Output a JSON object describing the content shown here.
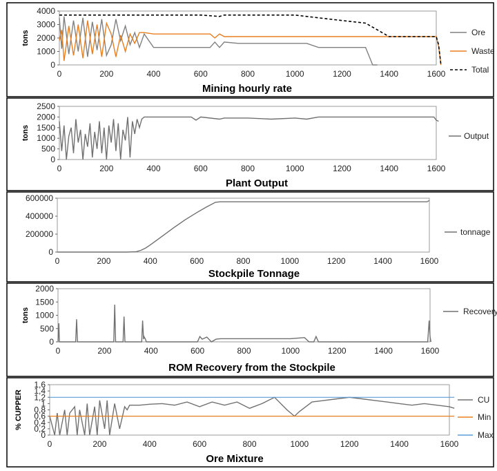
{
  "colors": {
    "ore": "#808080",
    "waste": "#e87e1e",
    "total": "#000000",
    "gray_line": "#707070",
    "min": "#e87e1e",
    "max": "#5b9bd5"
  },
  "chart_data": [
    {
      "type": "line",
      "title": "Mining hourly rate",
      "ylabel": "tons",
      "xlim": [
        0,
        1600
      ],
      "ylim": [
        0,
        4000
      ],
      "xticks": [
        "0",
        "200",
        "400",
        "600",
        "800",
        "1000",
        "1200",
        "1400",
        "1600"
      ],
      "yticks": [
        "0",
        "1000",
        "2000",
        "3000",
        "4000"
      ],
      "series": [
        {
          "name": "Ore",
          "x": [
            0,
            10,
            20,
            40,
            60,
            80,
            100,
            120,
            140,
            160,
            180,
            200,
            220,
            240,
            260,
            280,
            300,
            320,
            340,
            360,
            400,
            450,
            500,
            550,
            600,
            640,
            660,
            680,
            700,
            760,
            800,
            900,
            1000,
            1050,
            1100,
            1150,
            1200,
            1250,
            1300,
            1330,
            1340,
            1350
          ],
          "y": [
            3500,
            1200,
            3600,
            800,
            3300,
            1000,
            3500,
            600,
            3200,
            1100,
            3400,
            700,
            1500,
            3400,
            1800,
            2900,
            1500,
            2400,
            1300,
            2300,
            1300,
            1300,
            1300,
            1300,
            1300,
            1300,
            1700,
            1300,
            1700,
            1600,
            1600,
            1600,
            1600,
            1600,
            1300,
            1300,
            1300,
            1300,
            1300,
            0,
            0,
            0
          ]
        },
        {
          "name": "Waste",
          "x": [
            0,
            10,
            20,
            40,
            60,
            80,
            100,
            120,
            140,
            160,
            180,
            200,
            220,
            240,
            260,
            280,
            300,
            320,
            340,
            360,
            400,
            450,
            500,
            550,
            600,
            640,
            660,
            680,
            700,
            760,
            800,
            900,
            1000,
            1050,
            1100,
            1150,
            1200,
            1300,
            1340,
            1400,
            1500,
            1600,
            1610,
            1620
          ],
          "y": [
            1800,
            2600,
            300,
            2900,
            700,
            3000,
            500,
            3300,
            800,
            3000,
            600,
            3100,
            2300,
            600,
            2200,
            1000,
            2300,
            1600,
            2400,
            2400,
            2300,
            2300,
            2300,
            2300,
            2300,
            2300,
            2000,
            2300,
            2100,
            2100,
            2100,
            2100,
            2100,
            2100,
            2100,
            2100,
            2100,
            2100,
            2100,
            2100,
            2100,
            2100,
            1400,
            0
          ]
        },
        {
          "name": "Total",
          "x": [
            0,
            200,
            300,
            400,
            600,
            680,
            700,
            1000,
            1100,
            1200,
            1300,
            1340,
            1370,
            1400,
            1500,
            1600,
            1610,
            1620
          ],
          "y": [
            3700,
            3700,
            3700,
            3700,
            3700,
            3600,
            3700,
            3700,
            3500,
            3300,
            3100,
            2700,
            2400,
            2100,
            2100,
            2100,
            1500,
            0
          ]
        }
      ],
      "legend_position": "right"
    },
    {
      "type": "line",
      "title": "Plant Output",
      "ylabel": "tons",
      "xlim": [
        0,
        1600
      ],
      "ylim": [
        0,
        2500
      ],
      "xticks": [
        "0",
        "200",
        "400",
        "600",
        "800",
        "1000",
        "1200",
        "1400",
        "1600"
      ],
      "yticks": [
        "0",
        "500",
        "1000",
        "1500",
        "2000",
        "2500"
      ],
      "series": [
        {
          "name": "Output",
          "x": [
            0,
            10,
            20,
            30,
            40,
            50,
            60,
            70,
            80,
            90,
            100,
            110,
            120,
            130,
            140,
            150,
            160,
            170,
            180,
            190,
            200,
            210,
            220,
            230,
            240,
            250,
            260,
            270,
            280,
            290,
            300,
            310,
            320,
            330,
            340,
            350,
            360,
            400,
            500,
            560,
            580,
            600,
            680,
            700,
            800,
            900,
            1000,
            1050,
            1100,
            1200,
            1300,
            1400,
            1500,
            1590,
            1600,
            1610
          ],
          "y": [
            1800,
            400,
            1600,
            0,
            1100,
            1500,
            300,
            1900,
            800,
            1400,
            0,
            1200,
            600,
            1700,
            100,
            1300,
            500,
            1800,
            300,
            1500,
            0,
            1600,
            800,
            1900,
            400,
            1700,
            0,
            1400,
            900,
            2000,
            100,
            1800,
            1200,
            1900,
            1500,
            1900,
            2000,
            2000,
            2000,
            2000,
            1850,
            2000,
            1900,
            1950,
            1950,
            1900,
            1950,
            1900,
            2000,
            2000,
            2000,
            2000,
            2000,
            2000,
            1850,
            1800
          ]
        }
      ],
      "legend_position": "right"
    },
    {
      "type": "line",
      "title": "Stockpile Tonnage",
      "ylabel": "",
      "xlim": [
        0,
        1600
      ],
      "ylim": [
        0,
        600000
      ],
      "xticks": [
        "0",
        "200",
        "400",
        "600",
        "800",
        "1000",
        "1200",
        "1400",
        "1600"
      ],
      "yticks": [
        "0",
        "200000",
        "400000",
        "600000"
      ],
      "series": [
        {
          "name": "tonnage",
          "x": [
            0,
            200,
            300,
            340,
            360,
            380,
            400,
            450,
            500,
            550,
            600,
            640,
            680,
            700,
            800,
            1000,
            1100,
            1200,
            1400,
            1590,
            1600
          ],
          "y": [
            0,
            0,
            0,
            5000,
            20000,
            45000,
            80000,
            175000,
            270000,
            360000,
            440000,
            500000,
            555000,
            560000,
            560000,
            560000,
            560000,
            560000,
            560000,
            560000,
            575000
          ]
        }
      ],
      "legend_position": "right"
    },
    {
      "type": "line",
      "title": "ROM Recovery from the Stockpile",
      "ylabel": "tons",
      "xlim": [
        0,
        1600
      ],
      "ylim": [
        0,
        2000
      ],
      "xticks": [
        "0",
        "200",
        "400",
        "600",
        "800",
        "1000",
        "1200",
        "1400",
        "1600"
      ],
      "yticks": [
        "0",
        "500",
        "1000",
        "1500",
        "2000"
      ],
      "series": [
        {
          "name": "Recovery",
          "x": [
            0,
            4,
            6,
            10,
            76,
            80,
            84,
            240,
            244,
            248,
            280,
            284,
            288,
            360,
            364,
            368,
            370,
            376,
            380,
            600,
            610,
            620,
            640,
            660,
            680,
            700,
            1000,
            1060,
            1080,
            1100,
            1110,
            1120,
            1590,
            1596,
            1600,
            1604
          ],
          "y": [
            0,
            700,
            0,
            0,
            0,
            850,
            0,
            0,
            1400,
            0,
            0,
            950,
            0,
            0,
            800,
            100,
            200,
            100,
            0,
            0,
            200,
            100,
            180,
            0,
            100,
            120,
            120,
            160,
            0,
            0,
            200,
            0,
            0,
            800,
            200,
            0
          ]
        }
      ],
      "legend_position": "right"
    },
    {
      "type": "line",
      "title": "Ore Mixture",
      "ylabel": "% CUPPER",
      "xlim": [
        0,
        1600
      ],
      "ylim": [
        0,
        1.6
      ],
      "xticks": [
        "0",
        "200",
        "400",
        "600",
        "800",
        "1000",
        "1200",
        "1400",
        "1600"
      ],
      "yticks": [
        "0",
        "0,2",
        "0,4",
        "0,6",
        "0,8",
        "1",
        "1,2",
        "1,4",
        "1,6"
      ],
      "series": [
        {
          "name": "CU",
          "x": [
            0,
            20,
            30,
            40,
            60,
            70,
            80,
            100,
            110,
            120,
            140,
            150,
            160,
            180,
            190,
            200,
            220,
            230,
            240,
            260,
            280,
            300,
            310,
            320,
            360,
            400,
            450,
            500,
            550,
            600,
            650,
            700,
            750,
            800,
            850,
            900,
            950,
            980,
            1000,
            1050,
            1100,
            1150,
            1200,
            1250,
            1300,
            1350,
            1400,
            1450,
            1500,
            1550,
            1600,
            1620
          ],
          "y": [
            0.6,
            0,
            0.7,
            0,
            0.8,
            0,
            0.7,
            0.9,
            0,
            0.8,
            0,
            1.0,
            0,
            0.9,
            0,
            1.1,
            0.2,
            1.1,
            0,
            1.0,
            0.2,
            0.9,
            0.8,
            0.95,
            0.95,
            0.98,
            1.0,
            0.95,
            1.05,
            0.9,
            1.05,
            0.95,
            1.05,
            0.85,
            1.0,
            1.2,
            0.8,
            0.6,
            0.75,
            1.05,
            1.1,
            1.15,
            1.2,
            1.15,
            1.1,
            1.05,
            1.0,
            0.95,
            1.0,
            0.95,
            0.9,
            0.85
          ]
        },
        {
          "name": "Min",
          "x": [
            0,
            1620
          ],
          "y": [
            0.6,
            0.6
          ]
        },
        {
          "name": "Max",
          "x": [
            0,
            1620
          ],
          "y": [
            1.2,
            1.2
          ]
        }
      ],
      "legend_position": "right"
    }
  ]
}
